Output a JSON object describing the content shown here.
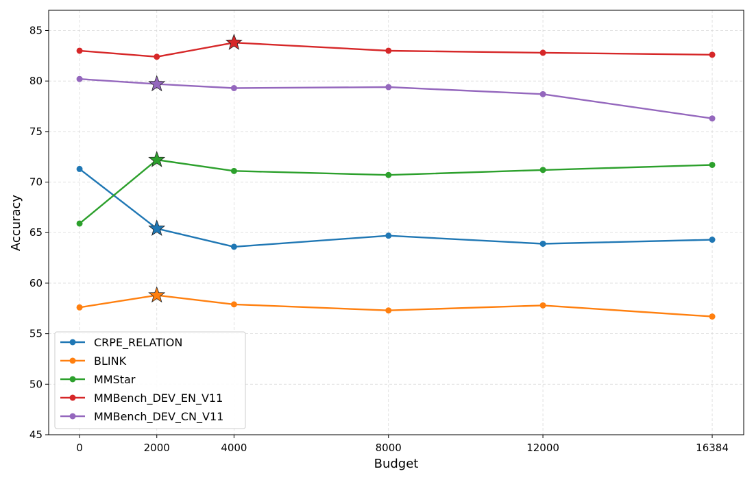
{
  "chart_data": {
    "type": "line",
    "title": "",
    "xlabel": "Budget",
    "ylabel": "Accuracy",
    "x": [
      0,
      2000,
      4000,
      8000,
      12000,
      16384
    ],
    "xticks": [
      "0",
      "2000",
      "4000",
      "8000",
      "12000",
      "16384"
    ],
    "xlim": [
      -800,
      17200
    ],
    "ylim": [
      45,
      87
    ],
    "yticks": [
      45,
      50,
      55,
      60,
      65,
      70,
      75,
      80,
      85
    ],
    "grid": true,
    "legend_position": "bottom-left",
    "series": [
      {
        "name": "CRPE_RELATION",
        "color": "#1f77b4",
        "values": [
          71.3,
          65.4,
          63.6,
          64.7,
          63.9,
          64.3
        ],
        "best_x": 2000,
        "best_value": 65.4
      },
      {
        "name": "BLINK",
        "color": "#ff7f0e",
        "values": [
          57.6,
          58.8,
          57.9,
          57.3,
          57.8,
          56.7
        ],
        "best_x": 2000,
        "best_value": 58.8
      },
      {
        "name": "MMStar",
        "color": "#2ca02c",
        "values": [
          65.9,
          72.2,
          71.1,
          70.7,
          71.2,
          71.7
        ],
        "best_x": 2000,
        "best_value": 72.2
      },
      {
        "name": "MMBench_DEV_EN_V11",
        "color": "#d62728",
        "values": [
          83.0,
          82.4,
          83.8,
          83.0,
          82.8,
          82.6
        ],
        "best_x": 4000,
        "best_value": 83.8
      },
      {
        "name": "MMBench_DEV_CN_V11",
        "color": "#9467bd",
        "values": [
          80.2,
          79.7,
          79.3,
          79.4,
          78.7,
          76.3
        ],
        "best_x": 2000,
        "best_value": 79.7
      }
    ]
  }
}
